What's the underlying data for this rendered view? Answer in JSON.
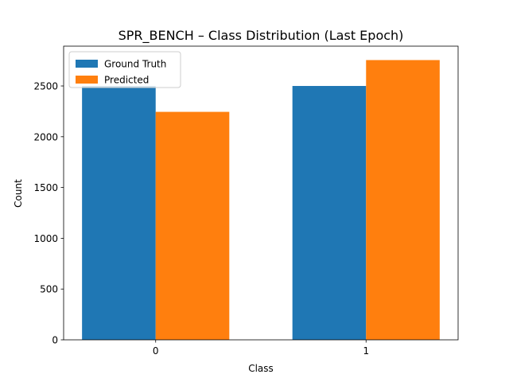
{
  "chart_data": {
    "type": "bar",
    "title": "SPR_BENCH – Class Distribution (Last Epoch)",
    "xlabel": "Class",
    "ylabel": "Count",
    "categories": [
      "0",
      "1"
    ],
    "series": [
      {
        "name": "Ground Truth",
        "values": [
          2500,
          2500
        ],
        "color": "#1f77b4"
      },
      {
        "name": "Predicted",
        "values": [
          2245,
          2755
        ],
        "color": "#ff7f0e"
      }
    ],
    "yticks": [
      0,
      500,
      1000,
      1500,
      2000,
      2500
    ],
    "ylim": [
      0,
      2892
    ],
    "grid": false,
    "legend_position": "top-left"
  }
}
